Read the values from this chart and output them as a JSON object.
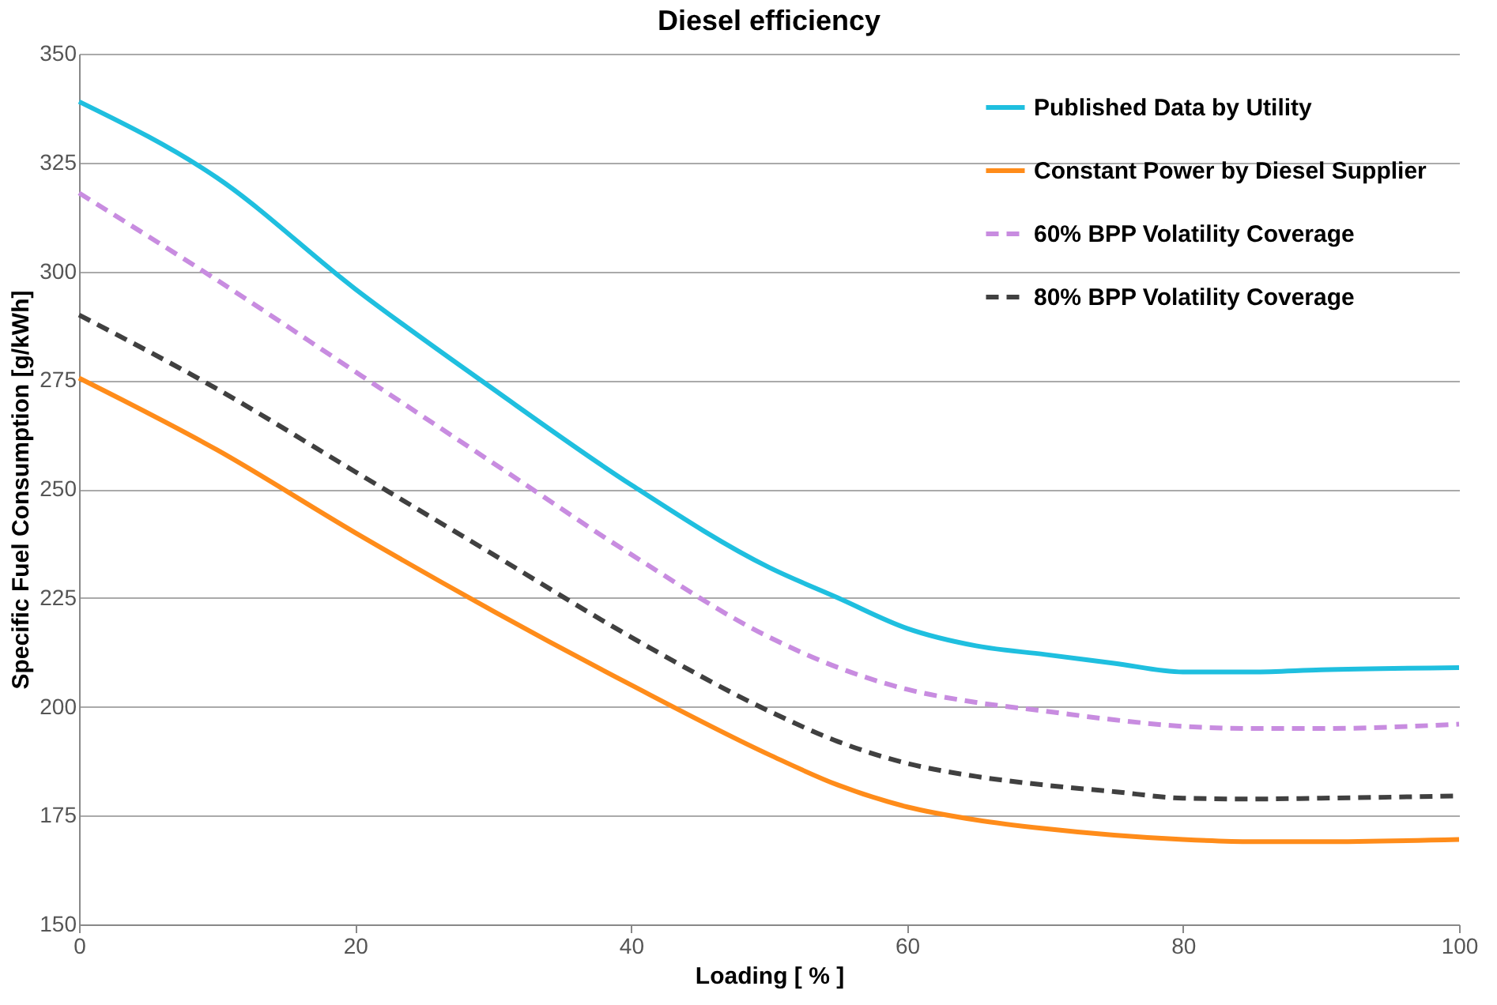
{
  "chart_data": {
    "type": "line",
    "title": "Diesel efficiency",
    "xlabel": "Loading [ % ]",
    "ylabel": "Specific Fuel Consumption [g/kWh]",
    "x": [
      0,
      10,
      20,
      30,
      40,
      50,
      55,
      60,
      65,
      70,
      75,
      80,
      85,
      90,
      100
    ],
    "series": [
      {
        "name": "Published Data by Utility",
        "color": "#1fbfdf",
        "line_style": "solid",
        "values": [
          339,
          321.5,
          296,
          273,
          251,
          232,
          225,
          218,
          214,
          212,
          210,
          208,
          208,
          208.5,
          209
        ]
      },
      {
        "name": "Constant Power by Diesel Supplier",
        "color": "#ff8c1a",
        "line_style": "solid",
        "values": [
          275.5,
          259,
          240,
          222,
          205,
          189,
          182,
          177,
          174,
          172,
          170.5,
          169.5,
          169,
          169,
          169.5
        ]
      },
      {
        "name": "60% BPP Volatility Coverage",
        "color": "#c88ce0",
        "line_style": "dashed",
        "values": [
          318,
          298,
          277,
          256,
          235,
          216,
          209,
          204,
          201,
          199,
          197,
          195.5,
          195,
          195,
          196
        ]
      },
      {
        "name": "80% BPP Volatility Coverage",
        "color": "#404040",
        "line_style": "dashed",
        "values": [
          290,
          273,
          254,
          235,
          216,
          199,
          192,
          187,
          184,
          182,
          180.5,
          179,
          178.8,
          179,
          179.5
        ]
      }
    ],
    "xlim": [
      0,
      100
    ],
    "xticks": [
      0,
      20,
      40,
      60,
      80,
      100
    ],
    "ylim": [
      150,
      350
    ],
    "yticks": [
      150,
      175,
      200,
      225,
      250,
      275,
      300,
      325,
      350
    ],
    "grid": "y",
    "legend": "top right",
    "marker": "none"
  }
}
